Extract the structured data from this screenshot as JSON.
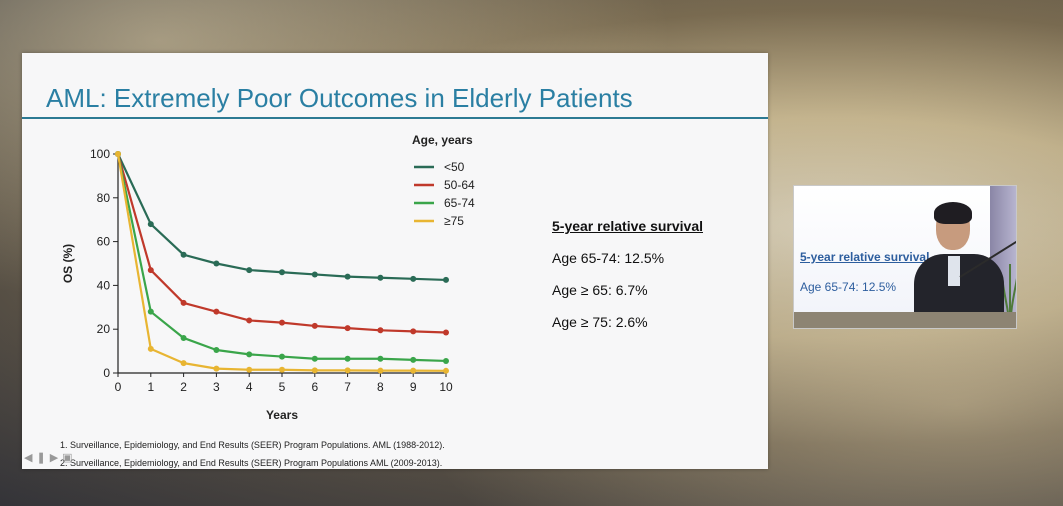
{
  "slide": {
    "title": "AML: Extremely Poor Outcomes in Elderly Patients",
    "survival_title": "5-year relative survival",
    "survival_items": [
      "Age 65-74: 12.5%",
      "Age ≥ 65: 6.7%",
      "Age ≥ 75: 2.6%"
    ],
    "references": [
      "1. Surveillance, Epidemiology, and End Results (SEER) Program Populations. AML (1988-2012).",
      "2. Surveillance, Epidemiology, and End Results (SEER) Program Populations AML (2009-2013)."
    ]
  },
  "chart_data": {
    "type": "line",
    "title": "",
    "xlabel": "Years",
    "ylabel": "OS (%)",
    "xlim": [
      0,
      10
    ],
    "ylim": [
      0,
      100
    ],
    "x": [
      0,
      1,
      2,
      3,
      4,
      5,
      6,
      7,
      8,
      9,
      10
    ],
    "yticks": [
      0,
      20,
      40,
      60,
      80,
      100
    ],
    "grid": false,
    "legend_title": "Age, years",
    "legend_position": "top-right",
    "series": [
      {
        "name": "<50",
        "color": "#2a6b56",
        "values": [
          100,
          68,
          54,
          50,
          47,
          46,
          45,
          44,
          43.5,
          43,
          42.5
        ]
      },
      {
        "name": "50-64",
        "color": "#c0392b",
        "values": [
          100,
          47,
          32,
          28,
          24,
          23,
          21.5,
          20.5,
          19.5,
          19,
          18.5
        ]
      },
      {
        "name": "65-74",
        "color": "#3aa54a",
        "values": [
          100,
          28,
          16,
          10.5,
          8.5,
          7.5,
          6.5,
          6.5,
          6.5,
          6,
          5.5
        ]
      },
      {
        "name": "≥75",
        "color": "#e8b532",
        "values": [
          100,
          11,
          4.5,
          2,
          1.5,
          1.5,
          1.2,
          1.2,
          1.1,
          1.1,
          1
        ]
      }
    ]
  },
  "speaker_screen": {
    "title": "5-year relative survival",
    "line": "Age 65-74: 12.5%"
  },
  "nav_icons": [
    "prev-icon",
    "pause-icon",
    "next-icon",
    "captions-icon"
  ]
}
